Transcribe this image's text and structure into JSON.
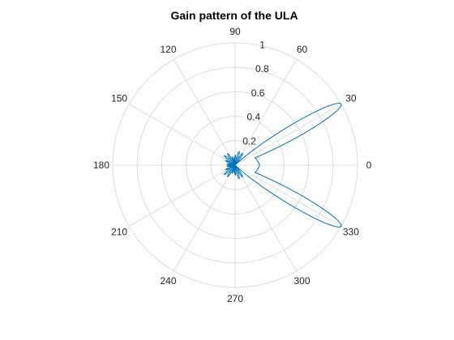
{
  "chart_data": {
    "type": "line",
    "subtype": "polar",
    "title": "Gain pattern of the ULA",
    "theta_unit": "degrees",
    "theta_ticks": [
      0,
      30,
      60,
      90,
      120,
      150,
      180,
      210,
      240,
      270,
      300,
      330
    ],
    "theta_tick_labels": [
      "0",
      "30",
      "60",
      "90",
      "120",
      "150",
      "180",
      "210",
      "240",
      "270",
      "300",
      "330"
    ],
    "r_ticks": [
      0.2,
      0.4,
      0.6,
      0.8,
      1
    ],
    "r_tick_labels": [
      "0.2",
      "0.4",
      "0.6",
      "0.8",
      "1"
    ],
    "rlim": [
      0,
      1
    ],
    "grid": true,
    "series": [
      {
        "color": "#0072bd",
        "main_lobes_deg": [
          30,
          330
        ],
        "peak_gain": 1.0,
        "broadside_gain": 0.2,
        "sidelobe_max_gain": 0.12
      }
    ]
  }
}
